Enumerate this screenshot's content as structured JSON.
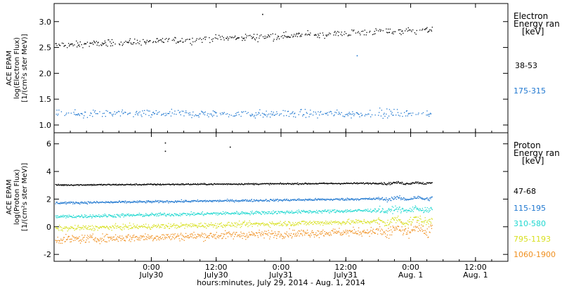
{
  "chart_data": [
    {
      "type": "scatter",
      "ylabel_lines": [
        "ACE EPAM",
        "log(Electron Flux)",
        "[1/(cm²s ster MeV)]"
      ],
      "ylim": [
        0.85,
        3.35
      ],
      "yticks": [
        1.0,
        1.5,
        2.0,
        2.5,
        3.0
      ],
      "legend_title_lines": [
        "Electron",
        "Energy ran",
        "[keV]"
      ],
      "series": [
        {
          "name": "38-53",
          "color": "#000000",
          "start": 2.55,
          "end": 2.85,
          "noise": 0.06
        },
        {
          "name": "175-315",
          "color": "#1f77d0",
          "start": 1.22,
          "end": 1.23,
          "noise": 0.07
        }
      ],
      "outliers": [
        {
          "hour": 20.5,
          "value": 3.15
        },
        {
          "hour": 38.0,
          "value": 2.35
        }
      ]
    },
    {
      "type": "scatter",
      "ylabel_lines": [
        "ACE EPAM",
        "log(Proton Flux)",
        "[1/(cm²s ster MeV)]"
      ],
      "ylim": [
        -2.5,
        6.8
      ],
      "yticks": [
        -2,
        0,
        2,
        4,
        6
      ],
      "legend_title_lines": [
        "Proton",
        "Energy ran",
        "[keV]"
      ],
      "series": [
        {
          "name": "47-68",
          "color": "#000000",
          "start": 3.05,
          "end": 3.2,
          "noise": 0.05
        },
        {
          "name": "115-195",
          "color": "#1f77d0",
          "start": 1.75,
          "end": 2.1,
          "noise": 0.08
        },
        {
          "name": "310-580",
          "color": "#1fd8d0",
          "start": 0.75,
          "end": 1.3,
          "noise": 0.12
        },
        {
          "name": "795-1193",
          "color": "#d8e020",
          "start": -0.1,
          "end": 0.5,
          "noise": 0.18
        },
        {
          "name": "1060-1900",
          "color": "#f09020",
          "start": -0.9,
          "end": -0.2,
          "noise": 0.28
        }
      ],
      "outliers": [
        {
          "hour": 2.5,
          "value": 6.1
        },
        {
          "hour": 14.5,
          "value": 5.8
        },
        {
          "hour": 2.5,
          "value": 5.5
        }
      ]
    }
  ],
  "x_axis": {
    "start_hour": -18,
    "end_hour": 66,
    "data_end_hour": 52,
    "ticks": [
      {
        "hour": 0,
        "time": "0:00",
        "date": "July30"
      },
      {
        "hour": 12,
        "time": "12:00",
        "date": "July30"
      },
      {
        "hour": 24,
        "time": "0:00",
        "date": "July31"
      },
      {
        "hour": 36,
        "time": "12:00",
        "date": "July31"
      },
      {
        "hour": 48,
        "time": "0:00",
        "date": "Aug. 1"
      },
      {
        "hour": 60,
        "time": "12:00",
        "date": "Aug. 1"
      }
    ],
    "label": "hours:minutes, July 29, 2014 - Aug.  1, 2014"
  }
}
